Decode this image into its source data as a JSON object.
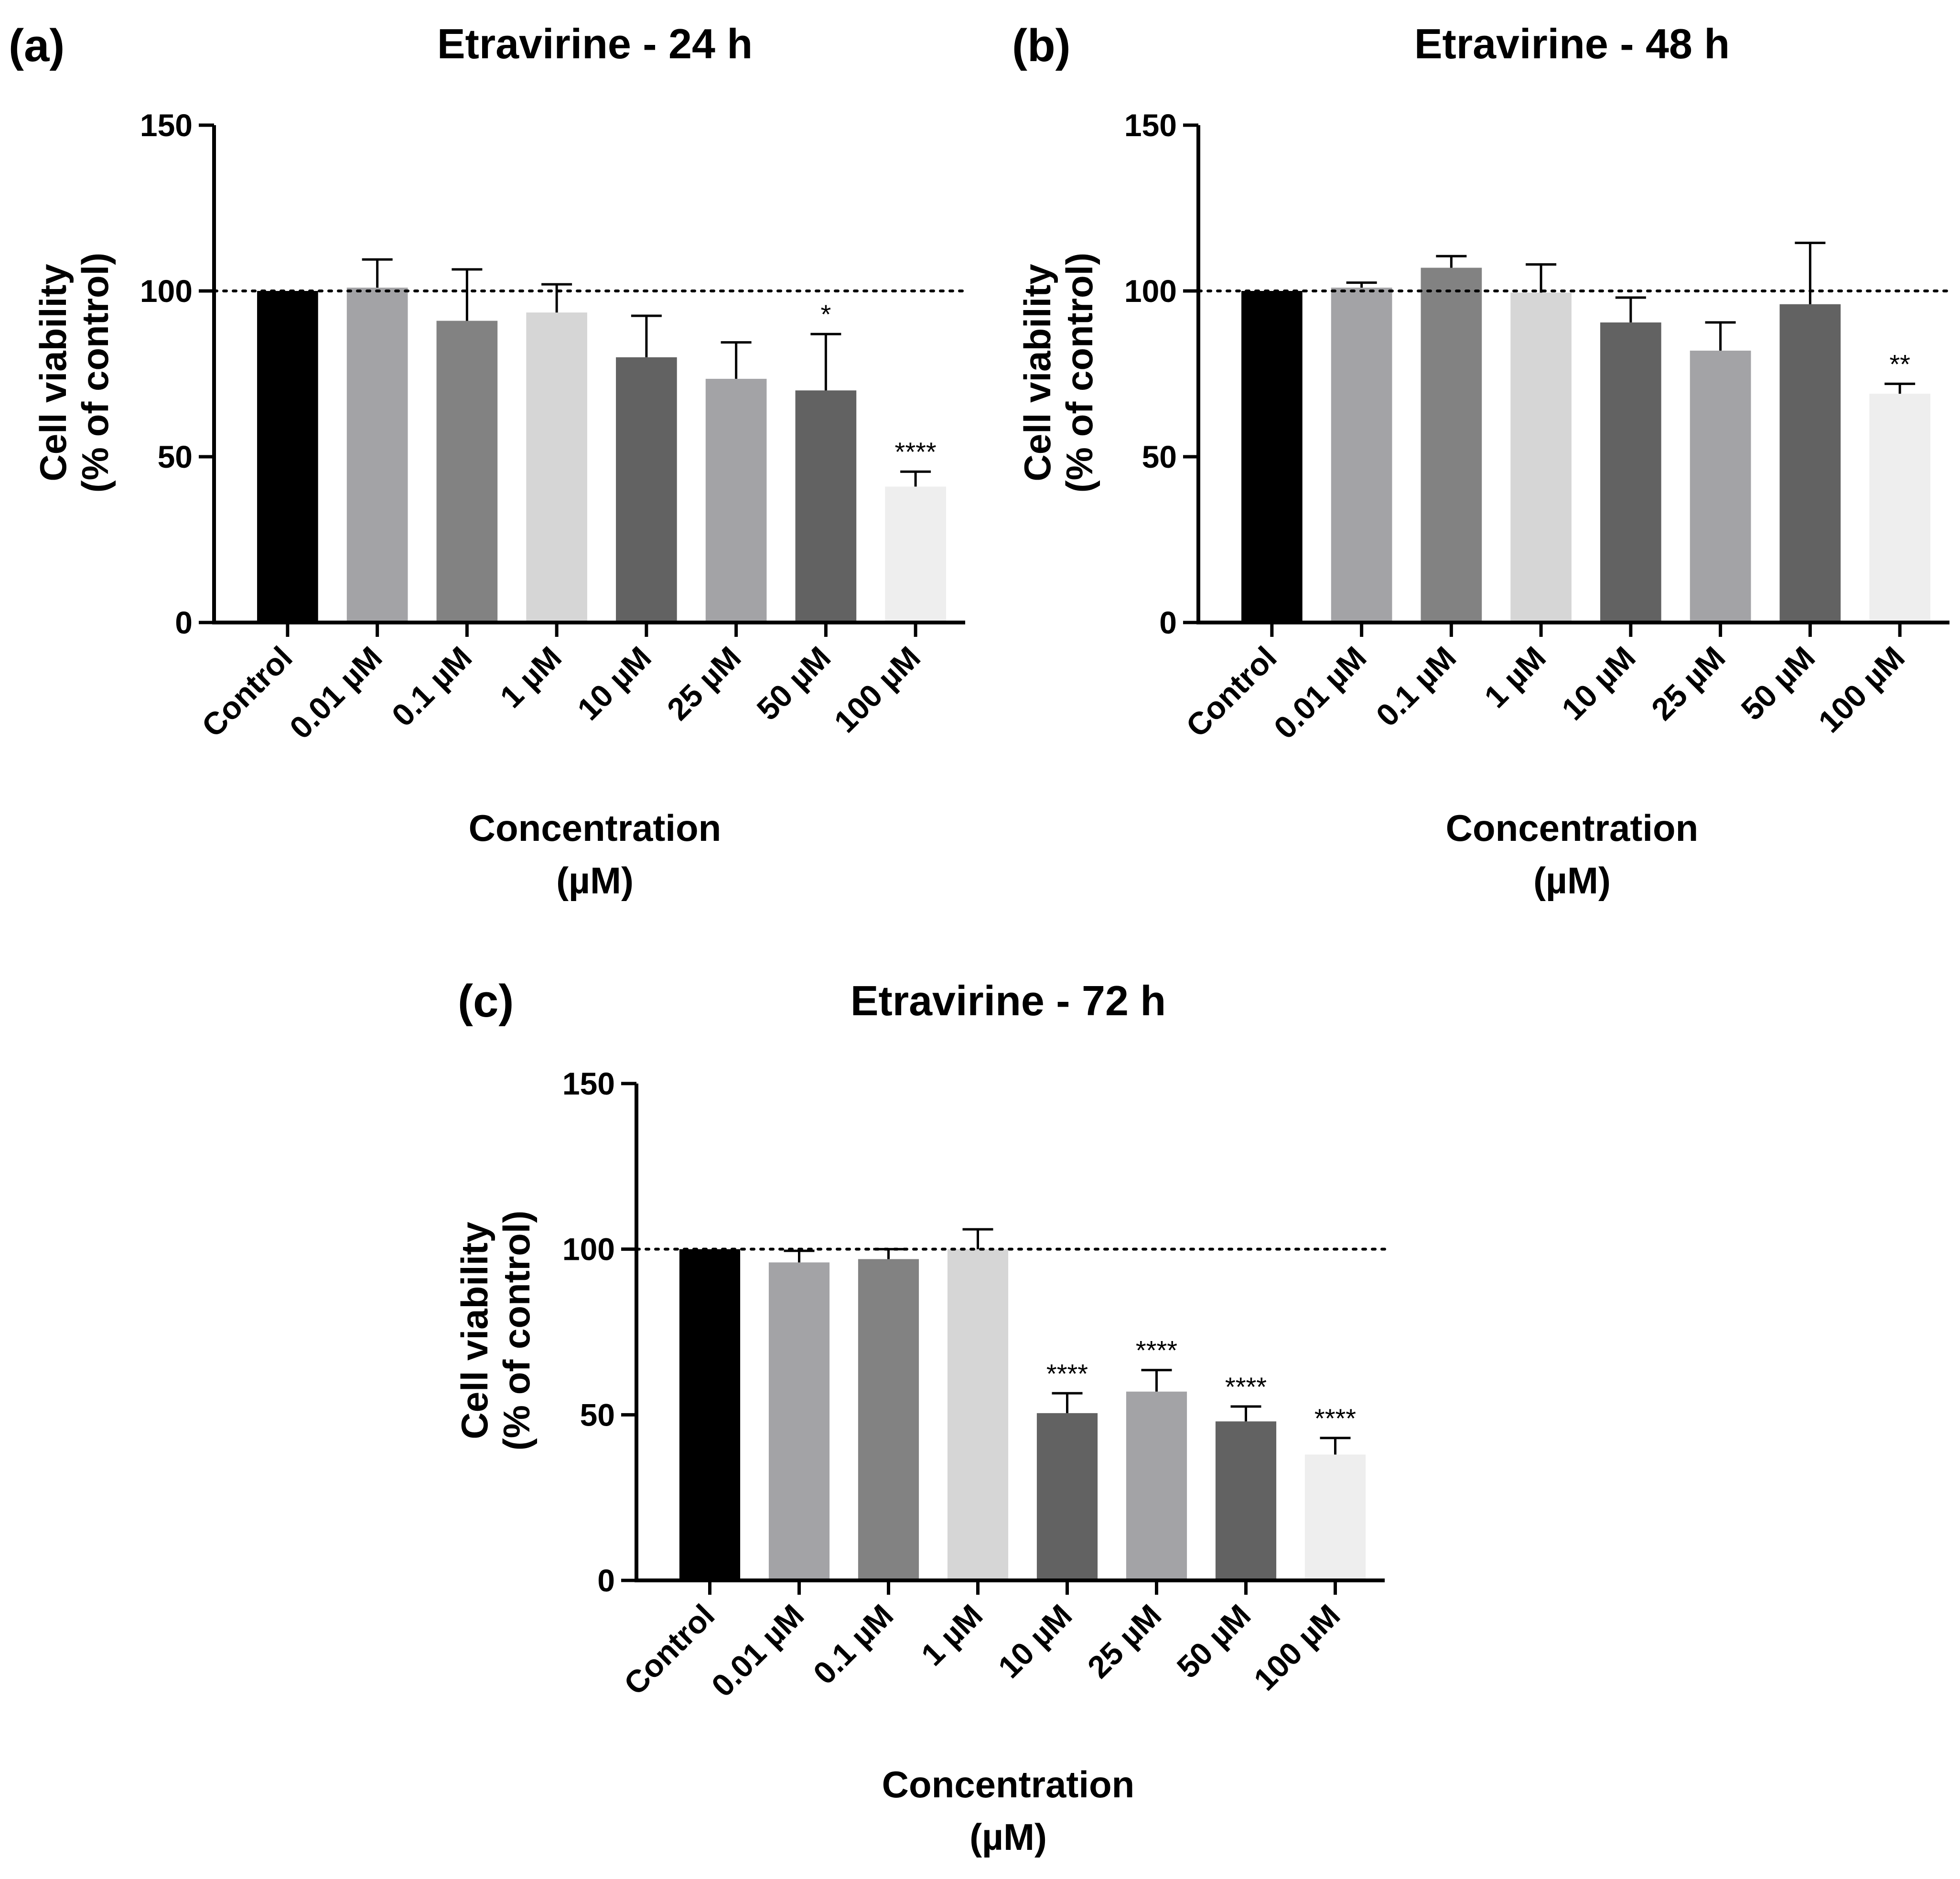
{
  "figure": {
    "panel_labels": [
      "(a)",
      "(b)",
      "(c)"
    ]
  },
  "chart_data": [
    {
      "type": "bar",
      "panel": "(a)",
      "title": "Etravirine - 24 h",
      "xlabel": [
        "Concentration",
        "(µM)"
      ],
      "ylabel": [
        "Cell viability",
        "(% of control)"
      ],
      "ylim": [
        0,
        150
      ],
      "yticks": [
        "0",
        "50",
        "100",
        "150"
      ],
      "reference_line": 100,
      "categories": [
        "Control",
        "0.01 µM",
        "0.1 µM",
        "1 µM",
        "10 µM",
        "25 µM",
        "50 µM",
        "100 µM"
      ],
      "values": [
        100,
        101,
        91,
        93.5,
        80,
        73.5,
        70,
        41
      ],
      "errors": [
        0,
        8.5,
        15.5,
        8.5,
        12.5,
        11,
        17,
        4.5
      ],
      "significance": [
        "",
        "",
        "",
        "",
        "",
        "",
        "*",
        "****"
      ],
      "colors": [
        "#000000",
        "#a3a3a6",
        "#828282",
        "#d6d6d6",
        "#626262",
        "#a3a3a6",
        "#626262",
        "#eeeeee"
      ]
    },
    {
      "type": "bar",
      "panel": "(b)",
      "title": "Etravirine - 48 h",
      "xlabel": [
        "Concentration",
        "(µM)"
      ],
      "ylabel": [
        "Cell viability",
        "(% of control)"
      ],
      "ylim": [
        0,
        150
      ],
      "yticks": [
        "0",
        "50",
        "100",
        "150"
      ],
      "reference_line": 100,
      "categories": [
        "Control",
        "0.01 µM",
        "0.1 µM",
        "1 µM",
        "10 µM",
        "25 µM",
        "50 µM",
        "100 µM"
      ],
      "values": [
        100,
        101,
        107,
        99.5,
        90.5,
        82,
        96,
        69
      ],
      "errors": [
        0,
        1.5,
        3.5,
        8.5,
        7.5,
        8.5,
        18.5,
        3
      ],
      "significance": [
        "",
        "",
        "",
        "",
        "",
        "",
        "",
        "**"
      ],
      "colors": [
        "#000000",
        "#a3a3a6",
        "#828282",
        "#d6d6d6",
        "#626262",
        "#a3a3a6",
        "#626262",
        "#eeeeee"
      ]
    },
    {
      "type": "bar",
      "panel": "(c)",
      "title": "Etravirine - 72 h",
      "xlabel": [
        "Concentration",
        "(µM)"
      ],
      "ylabel": [
        "Cell viability",
        "(% of control)"
      ],
      "ylim": [
        0,
        150
      ],
      "yticks": [
        "0",
        "50",
        "100",
        "150"
      ],
      "reference_line": 100,
      "categories": [
        "Control",
        "0.01 µM",
        "0.1 µM",
        "1 µM",
        "10 µM",
        "25 µM",
        "50 µM",
        "100 µM"
      ],
      "values": [
        100,
        96,
        97,
        100,
        50.5,
        57,
        48,
        38
      ],
      "errors": [
        0,
        3.5,
        3,
        6,
        6,
        6.5,
        4.5,
        5
      ],
      "significance": [
        "",
        "",
        "",
        "",
        "****",
        "****",
        "****",
        "****"
      ],
      "colors": [
        "#000000",
        "#a3a3a6",
        "#828282",
        "#d6d6d6",
        "#626262",
        "#a3a3a6",
        "#626262",
        "#eeeeee"
      ]
    }
  ]
}
